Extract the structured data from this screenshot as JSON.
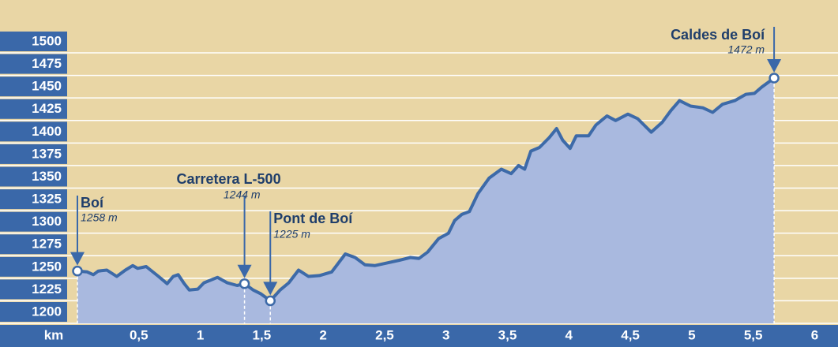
{
  "chart_data": {
    "type": "area",
    "x_label": "km",
    "x": [
      0,
      0.08,
      0.13,
      0.17,
      0.24,
      0.32,
      0.39,
      0.45,
      0.49,
      0.56,
      0.66,
      0.73,
      0.78,
      0.82,
      0.87,
      0.91,
      0.98,
      1.03,
      1.14,
      1.22,
      1.3,
      1.36,
      1.43,
      1.49,
      1.57,
      1.65,
      1.72,
      1.8,
      1.88,
      1.97,
      2.07,
      2.18,
      2.26,
      2.34,
      2.42,
      2.52,
      2.62,
      2.71,
      2.78,
      2.85,
      2.94,
      3.02,
      3.07,
      3.13,
      3.19,
      3.26,
      3.35,
      3.45,
      3.53,
      3.59,
      3.64,
      3.69,
      3.76,
      3.84,
      3.9,
      3.95,
      4.01,
      4.06,
      4.16,
      4.22,
      4.31,
      4.38,
      4.48,
      4.56,
      4.67,
      4.76,
      4.83,
      4.9,
      4.99,
      5.09,
      5.17,
      5.25,
      5.35,
      5.44,
      5.51,
      5.57,
      5.67
    ],
    "values": [
      1258,
      1257,
      1254,
      1258,
      1259,
      1252,
      1259,
      1264,
      1261,
      1263,
      1252,
      1244,
      1252,
      1254,
      1244,
      1237,
      1238,
      1245,
      1251,
      1245,
      1242,
      1244,
      1237,
      1233,
      1225,
      1237,
      1245,
      1259,
      1252,
      1253,
      1257,
      1277,
      1273,
      1265,
      1264,
      1267,
      1270,
      1273,
      1272,
      1279,
      1294,
      1300,
      1314,
      1321,
      1324,
      1344,
      1361,
      1371,
      1366,
      1375,
      1371,
      1391,
      1395,
      1406,
      1416,
      1403,
      1394,
      1408,
      1408,
      1420,
      1430,
      1425,
      1432,
      1427,
      1412,
      1423,
      1436,
      1447,
      1441,
      1439,
      1434,
      1443,
      1447,
      1454,
      1455,
      1462,
      1472
    ],
    "color": "#3d6aa8",
    "fill_color": "#a9b9df",
    "xlim": [
      0,
      6.19
    ],
    "ylim": [
      1200,
      1500
    ],
    "xticks": [
      {
        "value": 0.5,
        "label": "0,5"
      },
      1,
      {
        "value": 1.5,
        "label": "1,5"
      },
      2,
      {
        "value": 2.5,
        "label": "2,5"
      },
      3,
      {
        "value": 3.5,
        "label": "3,5"
      },
      4,
      {
        "value": 4.5,
        "label": "4,5"
      },
      5,
      {
        "value": 5.5,
        "label": "5,5"
      },
      6
    ],
    "yticks": [
      1200,
      1225,
      1250,
      1275,
      1300,
      1325,
      1350,
      1375,
      1400,
      1425,
      1450,
      1475,
      1500
    ],
    "grid": true,
    "waypoints": [
      {
        "name": "Boí",
        "x": 0,
        "value": 1258,
        "value_label": "1258 m"
      },
      {
        "name": "Carretera L-500",
        "x": 1.36,
        "value": 1244,
        "value_label": "1244 m"
      },
      {
        "name": "Pont de Boí",
        "x": 1.57,
        "value": 1225,
        "value_label": "1225 m"
      },
      {
        "name": "Caldes de Boí",
        "x": 5.67,
        "value": 1472,
        "value_label": "1472 m"
      }
    ]
  }
}
